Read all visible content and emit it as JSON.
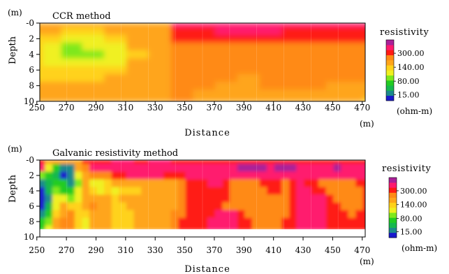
{
  "chart_data": [
    {
      "type": "heatmap",
      "title": "CCR method",
      "xlabel": "Distance",
      "ylabel": "Depth",
      "x_unit": "(m)",
      "y_unit": "(m)",
      "xlim": [
        250,
        475
      ],
      "ylim": [
        0,
        10
      ],
      "x_ticks": [
        "250",
        "270",
        "290",
        "310",
        "330",
        "350",
        "370",
        "390",
        "410",
        "430",
        "450",
        "470"
      ],
      "y_ticks": [
        "-0",
        "2",
        "4",
        "6",
        "8",
        "10"
      ],
      "x": [
        250,
        262,
        275,
        290,
        305,
        320,
        335,
        350,
        365,
        380,
        395,
        410,
        425,
        440,
        455,
        470,
        475
      ],
      "depth": [
        0,
        1,
        2,
        3,
        4,
        5,
        6,
        7,
        8,
        9,
        10
      ],
      "values": [
        [
          110,
          110,
          110,
          110,
          112,
          115,
          118,
          300,
          300,
          300,
          320,
          320,
          300,
          300,
          300,
          300,
          300
        ],
        [
          105,
          100,
          95,
          92,
          100,
          110,
          120,
          230,
          230,
          250,
          330,
          320,
          230,
          220,
          220,
          220,
          220
        ],
        [
          90,
          75,
          68,
          70,
          80,
          105,
          120,
          200,
          200,
          205,
          210,
          200,
          190,
          185,
          185,
          185,
          185
        ],
        [
          85,
          60,
          52,
          55,
          68,
          100,
          120,
          180,
          180,
          175,
          165,
          160,
          165,
          170,
          170,
          170,
          170
        ],
        [
          85,
          60,
          48,
          52,
          65,
          98,
          118,
          155,
          150,
          145,
          140,
          135,
          150,
          160,
          160,
          160,
          160
        ],
        [
          88,
          70,
          60,
          62,
          72,
          100,
          120,
          150,
          145,
          140,
          135,
          140,
          160,
          165,
          165,
          165,
          165
        ],
        [
          92,
          88,
          84,
          88,
          95,
          112,
          122,
          145,
          140,
          138,
          135,
          140,
          150,
          150,
          150,
          150,
          150
        ],
        [
          98,
          96,
          94,
          96,
          100,
          115,
          122,
          142,
          138,
          135,
          134,
          138,
          140,
          140,
          140,
          140,
          140
        ],
        [
          100,
          100,
          100,
          100,
          100,
          108,
          118,
          140,
          136,
          134,
          134,
          136,
          135,
          135,
          130,
          128,
          125
        ],
        [
          100,
          100,
          100,
          100,
          100,
          100,
          118,
          138,
          134,
          132,
          132,
          134,
          132,
          130,
          125,
          110,
          100
        ],
        [
          100,
          100,
          100,
          100,
          100,
          100,
          118,
          136,
          132,
          130,
          130,
          132,
          130,
          128,
          120,
          100,
          95
        ]
      ],
      "colorbar": {
        "label": "resistivity",
        "unit": "(ohm-m)",
        "tick_labels": [
          "300.00",
          "140.00",
          "80.00",
          "15.00"
        ],
        "colors": [
          "#1a1acc",
          "#1c8a8c",
          "#16b84e",
          "#22cc22",
          "#7fe81c",
          "#f0f020",
          "#ffd21a",
          "#ffa51a",
          "#ff8a14",
          "#ff1a14",
          "#ff1a6e",
          "#aa2099"
        ]
      }
    },
    {
      "type": "heatmap",
      "title": "Galvanic resistivity method",
      "xlabel": "Distance",
      "ylabel": "Depth",
      "x_unit": "(m)",
      "y_unit": "(m)",
      "xlim": [
        250,
        475
      ],
      "ylim": [
        0,
        10
      ],
      "x_ticks": [
        "250",
        "270",
        "290",
        "310",
        "330",
        "350",
        "370",
        "390",
        "410",
        "430",
        "450",
        "470"
      ],
      "y_ticks": [
        "-0",
        "2",
        "4",
        "6",
        "8",
        "10"
      ],
      "x": [
        250,
        255,
        260,
        265,
        270,
        275,
        280,
        285,
        290,
        295,
        300,
        305,
        310,
        315,
        320,
        325,
        330,
        335,
        340,
        345,
        350,
        355,
        360,
        365,
        370,
        375,
        380,
        385,
        390,
        395,
        400,
        405,
        410,
        415,
        420,
        425,
        430,
        435,
        440,
        445,
        450,
        455,
        460,
        465,
        470,
        475
      ],
      "depth": [
        0,
        1,
        2,
        3,
        4,
        5,
        6,
        7,
        8,
        9
      ],
      "values": [
        [
          130,
          200,
          120,
          100,
          120,
          130,
          130,
          200,
          220,
          210,
          220,
          250,
          250,
          250,
          230,
          230,
          250,
          250,
          250,
          220,
          220,
          220,
          200,
          200,
          220,
          220,
          220,
          220,
          220,
          220,
          200,
          200,
          200,
          200,
          200,
          200,
          200,
          200,
          200,
          200,
          200,
          200,
          200,
          200,
          200,
          200
        ],
        [
          60,
          330,
          60,
          40,
          20,
          20,
          120,
          150,
          310,
          300,
          300,
          300,
          300,
          330,
          300,
          300,
          300,
          300,
          300,
          310,
          300,
          330,
          300,
          280,
          300,
          300,
          300,
          300,
          340,
          420,
          340,
          420,
          300,
          340,
          420,
          340,
          300,
          300,
          300,
          300,
          300,
          420,
          300,
          330,
          300,
          300
        ],
        [
          40,
          50,
          35,
          25,
          15,
          20,
          70,
          130,
          145,
          150,
          180,
          200,
          220,
          250,
          250,
          260,
          270,
          250,
          240,
          230,
          240,
          270,
          270,
          270,
          270,
          300,
          280,
          260,
          260,
          260,
          270,
          270,
          260,
          260,
          250,
          250,
          250,
          260,
          260,
          250,
          250,
          260,
          260,
          260,
          260,
          260
        ],
        [
          30,
          20,
          25,
          40,
          30,
          20,
          50,
          100,
          70,
          60,
          80,
          100,
          110,
          105,
          100,
          105,
          110,
          100,
          100,
          110,
          160,
          200,
          220,
          240,
          260,
          250,
          220,
          170,
          150,
          150,
          170,
          200,
          220,
          220,
          150,
          200,
          260,
          220,
          190,
          180,
          170,
          160,
          150,
          140,
          200,
          200
        ],
        [
          25,
          15,
          22,
          50,
          40,
          30,
          60,
          110,
          90,
          70,
          75,
          70,
          85,
          90,
          80,
          100,
          110,
          100,
          100,
          110,
          165,
          190,
          220,
          230,
          240,
          230,
          210,
          180,
          150,
          140,
          150,
          160,
          190,
          200,
          180,
          200,
          250,
          260,
          240,
          200,
          170,
          160,
          150,
          160,
          180,
          200
        ],
        [
          25,
          15,
          20,
          60,
          60,
          50,
          70,
          120,
          120,
          110,
          100,
          90,
          110,
          130,
          120,
          110,
          110,
          100,
          105,
          120,
          170,
          190,
          210,
          220,
          220,
          210,
          190,
          180,
          160,
          150,
          140,
          150,
          170,
          180,
          170,
          190,
          250,
          290,
          280,
          250,
          200,
          180,
          160,
          150,
          170,
          200
        ],
        [
          25,
          15,
          22,
          70,
          100,
          90,
          80,
          120,
          140,
          130,
          100,
          80,
          80,
          100,
          120,
          115,
          110,
          110,
          115,
          130,
          175,
          200,
          210,
          220,
          220,
          200,
          180,
          175,
          170,
          160,
          150,
          150,
          150,
          160,
          170,
          190,
          250,
          300,
          290,
          250,
          200,
          190,
          180,
          170,
          180,
          200
        ],
        [
          30,
          20,
          40,
          85,
          130,
          140,
          90,
          80,
          120,
          125,
          105,
          90,
          75,
          90,
          110,
          120,
          130,
          125,
          120,
          140,
          180,
          200,
          210,
          220,
          240,
          290,
          300,
          250,
          200,
          180,
          170,
          165,
          165,
          170,
          180,
          210,
          260,
          310,
          300,
          250,
          200,
          190,
          190,
          180,
          190,
          200
        ],
        [
          40,
          30,
          50,
          100,
          140,
          145,
          95,
          60,
          115,
          120,
          105,
          95,
          80,
          75,
          100,
          120,
          130,
          128,
          125,
          140,
          185,
          200,
          210,
          220,
          250,
          300,
          310,
          260,
          210,
          190,
          180,
          175,
          175,
          180,
          190,
          215,
          260,
          310,
          300,
          250,
          210,
          200,
          190,
          190,
          200,
          200
        ],
        [
          50,
          40,
          60,
          100,
          140,
          145,
          95,
          60,
          115,
          120,
          105,
          95,
          80,
          75,
          100,
          120,
          130,
          128,
          125,
          140,
          185,
          200,
          210,
          220,
          250,
          300,
          310,
          260,
          210,
          190,
          180,
          175,
          175,
          180,
          190,
          215,
          260,
          310,
          300,
          250,
          210,
          200,
          190,
          190,
          200,
          200
        ]
      ],
      "colorbar": {
        "label": "resistivity",
        "unit": "(ohm-m)",
        "tick_labels": [
          "300.00",
          "140.00",
          "80.00",
          "15.00"
        ],
        "colors": [
          "#1a1acc",
          "#1c8a8c",
          "#16b84e",
          "#22cc22",
          "#7fe81c",
          "#f0f020",
          "#ffd21a",
          "#ffa51a",
          "#ff8a14",
          "#ff1a14",
          "#ff1a6e",
          "#aa2099"
        ]
      }
    }
  ]
}
